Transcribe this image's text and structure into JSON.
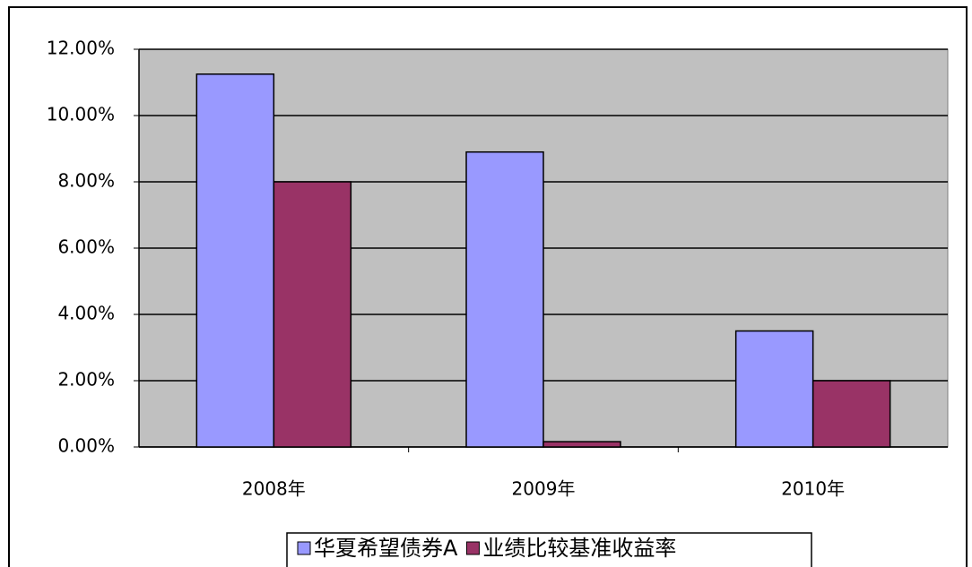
{
  "chart_data": {
    "type": "bar",
    "categories": [
      "2008年",
      "2009年",
      "2010年"
    ],
    "series": [
      {
        "name": "华夏希望债券A",
        "color": "#9999ff",
        "values": [
          11.25,
          8.9,
          3.5
        ]
      },
      {
        "name": "业绩比较基准收益率",
        "color": "#993366",
        "values": [
          8.0,
          0.16,
          2.0
        ]
      }
    ],
    "ylim": [
      0,
      12
    ],
    "yticks": [
      {
        "value": 0,
        "label": "0.00%"
      },
      {
        "value": 2,
        "label": "2.00%"
      },
      {
        "value": 4,
        "label": "4.00%"
      },
      {
        "value": 6,
        "label": "6.00%"
      },
      {
        "value": 8,
        "label": "8.00%"
      },
      {
        "value": 10,
        "label": "10.00%"
      },
      {
        "value": 12,
        "label": "12.00%"
      }
    ],
    "grid": true,
    "plot_background": "#c0c0c0",
    "legend": "bottom"
  }
}
